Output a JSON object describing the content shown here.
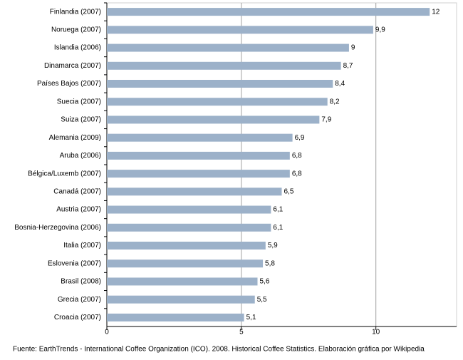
{
  "chart_data": {
    "type": "bar",
    "orientation": "horizontal",
    "categories": [
      "Finlandia (2007)",
      "Noruega (2007)",
      "Islandia (2006)",
      "Dinamarca (2007)",
      "Países Bajos (2007)",
      "Suecia (2007)",
      "Suiza (2007)",
      "Alemania (2009)",
      "Aruba (2006)",
      "Bélgica/Luxemb (2007)",
      "Canadá (2007)",
      "Austria (2007)",
      "Bosnia-Herzegovina (2006)",
      "Italia (2007)",
      "Eslovenia (2007)",
      "Brasil (2008)",
      "Grecia (2007)",
      "Croacia (2007)"
    ],
    "values": [
      12,
      9.9,
      9,
      8.7,
      8.4,
      8.2,
      7.9,
      6.9,
      6.8,
      6.8,
      6.5,
      6.1,
      6.1,
      5.9,
      5.8,
      5.6,
      5.5,
      5.1
    ],
    "value_labels": [
      "12",
      "9,9",
      "9",
      "8,7",
      "8,4",
      "8,2",
      "7,9",
      "6,9",
      "6,8",
      "6,8",
      "6,5",
      "6,1",
      "6,1",
      "5,9",
      "5,8",
      "5,6",
      "5,5",
      "5,1"
    ],
    "color": "#9cb1c9",
    "xlim": [
      0,
      13
    ],
    "xticks": [
      0,
      5,
      10
    ],
    "grid": true,
    "source": "Fuente: EarthTrends - International Coffee Organization (ICO). 2008. Historical Coffee Statistics. Elaboración gráfica por Wikipedia"
  }
}
